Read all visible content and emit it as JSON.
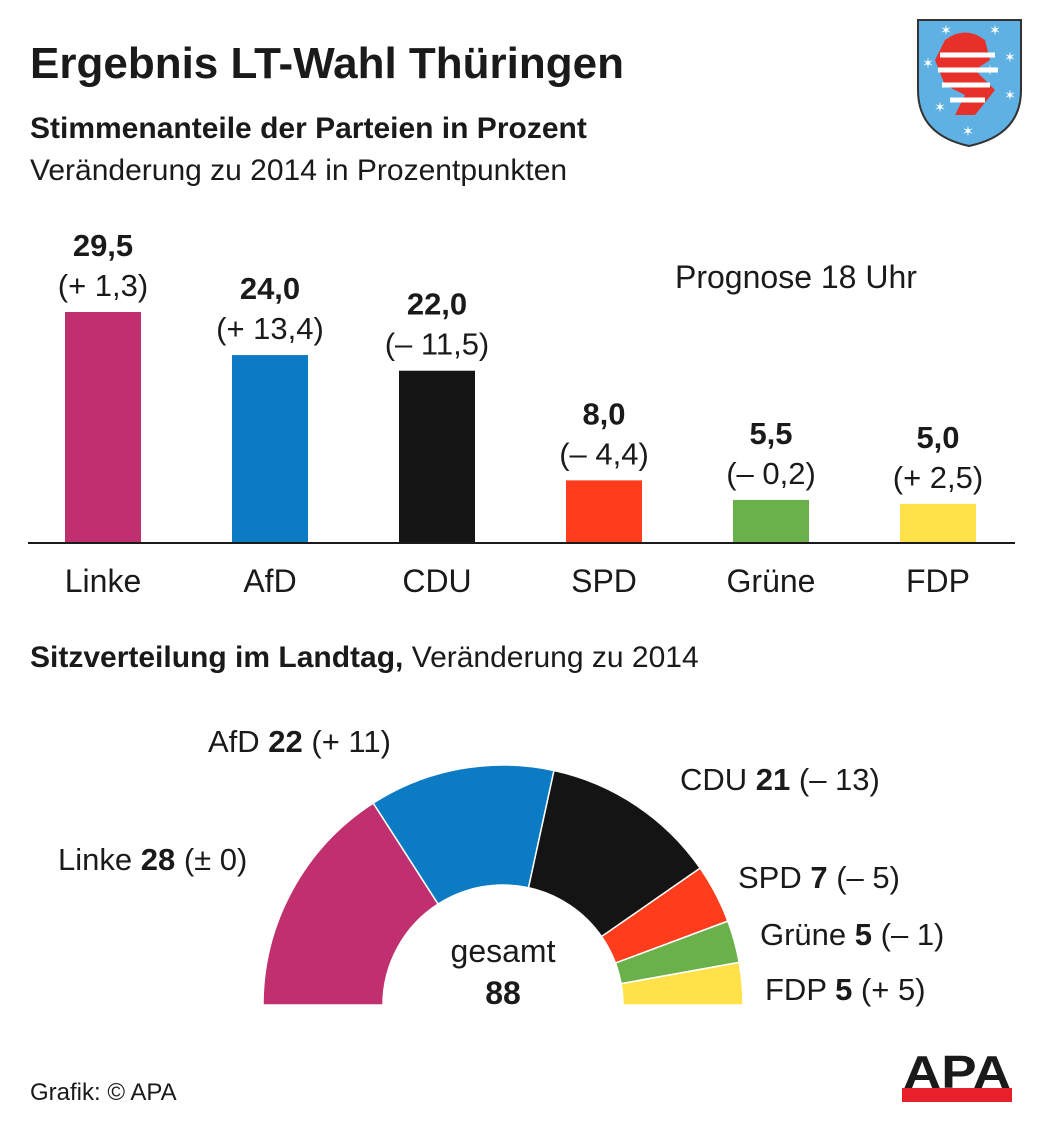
{
  "header": {
    "title": "Ergebnis LT-Wahl Thüringen",
    "subtitle": "Stimmenanteile der Parteien in Prozent",
    "subtitle2": "Veränderung zu 2014 in Prozentpunkten",
    "note": "Prognose 18 Uhr"
  },
  "chart_data": [
    {
      "type": "bar",
      "title": "Stimmenanteile der Parteien in Prozent",
      "subtitle": "Veränderung zu 2014 in Prozentpunkten",
      "categories": [
        "Linke",
        "AfD",
        "CDU",
        "SPD",
        "Grüne",
        "FDP"
      ],
      "values": [
        29.5,
        24.0,
        22.0,
        8.0,
        5.5,
        5.0
      ],
      "value_labels": [
        "29,5",
        "24,0",
        "22,0",
        "8,0",
        "5,5",
        "5,0"
      ],
      "changes": [
        1.3,
        13.4,
        -11.5,
        -4.4,
        -0.2,
        2.5
      ],
      "change_labels": [
        "(+ 1,3)",
        "(+ 13,4)",
        "(– 11,5)",
        "(– 4,4)",
        "(– 0,2)",
        "(+ 2,5)"
      ],
      "colors": [
        "#c02f6e",
        "#0b7bc3",
        "#141414",
        "#ff3d1c",
        "#6ab04b",
        "#ffe24a"
      ],
      "ylim": [
        0,
        30
      ],
      "grid": false
    },
    {
      "type": "pie",
      "subtype": "half-donut",
      "title": "Sitzverteilung im Landtag,",
      "title_suffix": "Veränderung zu 2014",
      "categories": [
        "Linke",
        "AfD",
        "CDU",
        "SPD",
        "Grüne",
        "FDP"
      ],
      "values": [
        28,
        22,
        21,
        7,
        5,
        5
      ],
      "changes": [
        0,
        11,
        -13,
        -5,
        -1,
        5
      ],
      "change_labels": [
        "(± 0)",
        "(+ 11)",
        "(– 13)",
        "(– 5)",
        "(– 1)",
        "(+ 5)"
      ],
      "colors": [
        "#c02f6e",
        "#0b7bc3",
        "#141414",
        "#ff3d1c",
        "#6ab04b",
        "#ffe24a"
      ],
      "total_label": "gesamt",
      "total": "88"
    }
  ],
  "footer": {
    "credit": "Grafik: © APA",
    "logo_text": "APA"
  },
  "colors": {
    "logo_red": "#e8202a",
    "shield_blue": "#5fb1e3"
  },
  "icons": {
    "coat_of_arms": "thuringia-coat-of-arms-icon"
  }
}
